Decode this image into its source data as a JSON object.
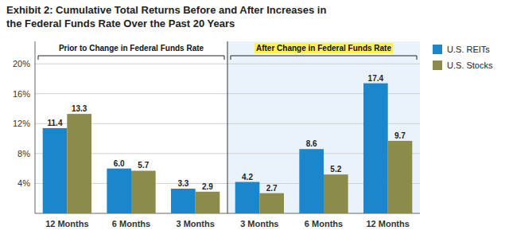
{
  "chart_data": {
    "type": "bar",
    "title": "Exhibit 2: Cumulative Total Returns Before and After Increases in",
    "subtitle": "the Federal Funds Rate Over the Past 20 Years",
    "categories": [
      "12 Months",
      "6 Months",
      "3 Months",
      "3 Months",
      "6 Months",
      "12 Months"
    ],
    "series": [
      {
        "name": "U.S. REITs",
        "color": "#1C86CD",
        "values": [
          11.4,
          6.0,
          3.3,
          4.2,
          8.6,
          17.4
        ],
        "value_labels": [
          "11.4",
          "6.0",
          "3.3",
          "4.2",
          "8.6",
          "17.4"
        ]
      },
      {
        "name": "U.S. Stocks",
        "color": "#8B8B4A",
        "values": [
          13.3,
          5.7,
          2.9,
          2.7,
          5.2,
          9.7
        ]
      }
    ],
    "ylim": [
      0,
      23
    ],
    "yticks": [
      {
        "value": 4,
        "label": "4%"
      },
      {
        "value": 8,
        "label": "8%"
      },
      {
        "value": 12,
        "label": "12%"
      },
      {
        "value": 16,
        "label": "16%"
      },
      {
        "value": 20,
        "label": "20%"
      }
    ],
    "grid": true,
    "legend": "right",
    "data_labels": true,
    "annotations": [
      {
        "text": "Prior to Change in Federal Funds Rate"
      },
      {
        "text": "After Change in Federal Funds Rate"
      }
    ]
  }
}
